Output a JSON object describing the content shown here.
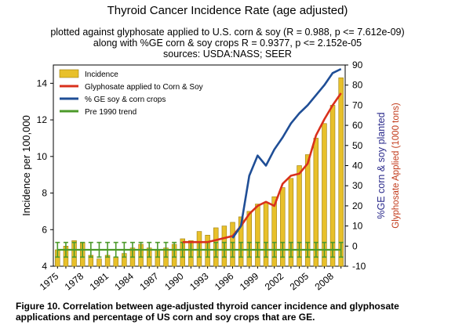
{
  "title": "Thyroid Cancer Incidence Rate (age adjusted)",
  "subtitle_lines": [
    "plotted against glyphosate applied to U.S. corn & soy (R = 0.988, p <= 7.612e-09)",
    "along with %GE corn & soy crops R = 0.9377, p <= 2.152e-05",
    "sources: USDA:NASS; SEER"
  ],
  "caption": "Figure 10. Correlation between age-adjusted thyroid cancer incidence and glyphosate applications and percentage of US corn and soy crops that are GE.",
  "colors": {
    "incidence": "#e8c02a",
    "glyphosate": "#d9301c",
    "ge": "#1f4e96",
    "trend": "#4c9a2a",
    "right_axis_label_blue": "#2b2b8c",
    "right_axis_label_red": "#c23a1a"
  },
  "chart_data": {
    "type": "bar",
    "x": [
      1975,
      1976,
      1977,
      1978,
      1979,
      1980,
      1981,
      1982,
      1983,
      1984,
      1985,
      1986,
      1987,
      1988,
      1989,
      1990,
      1991,
      1992,
      1993,
      1994,
      1995,
      1996,
      1997,
      1998,
      1999,
      2000,
      2001,
      2002,
      2003,
      2004,
      2005,
      2006,
      2007,
      2008,
      2009
    ],
    "x_tick_labels": [
      "1975",
      "1978",
      "1981",
      "1984",
      "1987",
      "1990",
      "1993",
      "1996",
      "1999",
      "2002",
      "2005",
      "2008"
    ],
    "ylabel": "Incidence per 100,000",
    "ylabel_right_1": "%GE corn & soy planted",
    "ylabel_right_2": "Glyphosate Applied (1000 tons)",
    "ylim": [
      4,
      15
    ],
    "yticks": [
      4,
      6,
      8,
      10,
      12,
      14
    ],
    "ylim_right": [
      -10,
      90
    ],
    "yticks_right": [
      -10,
      0,
      10,
      20,
      30,
      40,
      50,
      60,
      70,
      80,
      90
    ],
    "legend_position": "top-left",
    "grid": false,
    "series": [
      {
        "name": "Incidence",
        "kind": "bar",
        "axis": "left",
        "values": [
          4.9,
          5.1,
          5.4,
          5.3,
          4.6,
          4.4,
          4.6,
          4.5,
          4.7,
          5.0,
          5.2,
          5.0,
          4.9,
          5.0,
          5.2,
          5.5,
          5.4,
          5.9,
          5.7,
          6.1,
          6.2,
          6.4,
          6.7,
          7.0,
          7.4,
          7.5,
          7.8,
          8.3,
          8.8,
          9.5,
          10.1,
          11.0,
          11.8,
          12.8,
          14.3
        ]
      },
      {
        "name": "Glyphosate applied to Corn & Soy",
        "kind": "line",
        "axis": "right",
        "x": [
          1990,
          1991,
          1992,
          1993,
          1994,
          1995,
          1996,
          1997,
          1998,
          1999,
          2000,
          2001,
          2002,
          2003,
          2004,
          2005,
          2006,
          2007,
          2008,
          2009
        ],
        "values": [
          2,
          2,
          2,
          2,
          3,
          4,
          5,
          10,
          16,
          20,
          22,
          20,
          31,
          35,
          36,
          41,
          55,
          63,
          70,
          76
        ]
      },
      {
        "name": "% GE soy & corn crops",
        "kind": "line",
        "axis": "right",
        "x": [
          1996,
          1997,
          1998,
          1999,
          2000,
          2001,
          2002,
          2003,
          2004,
          2005,
          2006,
          2007,
          2008,
          2009
        ],
        "values": [
          4,
          10,
          35,
          45,
          40,
          48,
          54,
          61,
          66,
          70,
          75,
          80,
          86,
          88
        ]
      },
      {
        "name": "Pre 1990 trend",
        "kind": "errorbar",
        "axis": "left",
        "x": [
          1975,
          1976,
          1977,
          1978,
          1979,
          1980,
          1981,
          1982,
          1983,
          1984,
          1985,
          1986,
          1987,
          1988,
          1989,
          1990,
          1991,
          1992,
          1993,
          1994,
          1995,
          1996,
          1997,
          1998,
          1999,
          2000,
          2001,
          2002,
          2003,
          2004,
          2005,
          2006,
          2007,
          2008,
          2009
        ],
        "values": [
          4.9,
          4.9,
          4.9,
          4.9,
          4.9,
          4.9,
          4.9,
          4.9,
          4.9,
          4.9,
          4.9,
          4.9,
          4.9,
          4.9,
          4.9,
          4.9,
          4.9,
          4.9,
          4.9,
          4.9,
          4.9,
          4.9,
          4.9,
          4.9,
          4.9,
          4.9,
          4.9,
          4.9,
          4.9,
          4.9,
          4.9,
          4.9,
          4.9,
          4.9,
          4.9
        ],
        "error": 0.4
      }
    ]
  }
}
